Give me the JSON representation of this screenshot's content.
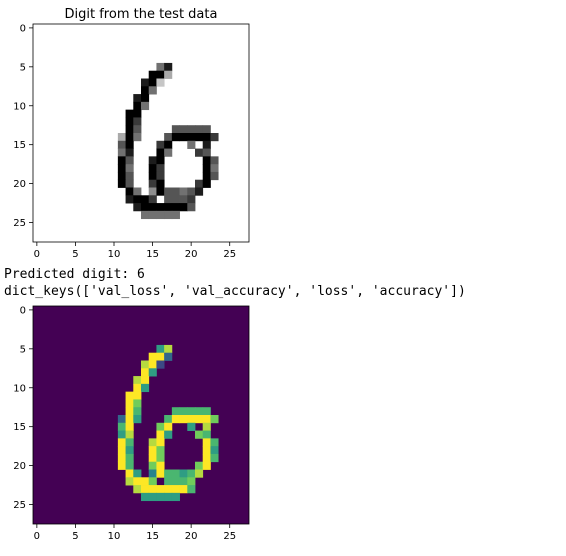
{
  "plots": [
    {
      "title": "Digit from the test data",
      "colormap": "gray_r",
      "xticks": [
        "0",
        "5",
        "10",
        "15",
        "20",
        "25"
      ],
      "yticks": [
        "0",
        "5",
        "10",
        "15",
        "20",
        "25"
      ]
    },
    {
      "title": "",
      "colormap": "viridis",
      "xticks": [
        "0",
        "5",
        "10",
        "15",
        "20",
        "25"
      ],
      "yticks": [
        "0",
        "5",
        "10",
        "15",
        "20",
        "25"
      ]
    }
  ],
  "output_lines": {
    "predicted": "Predicted digit: 6",
    "keys": "dict_keys(['val_loss', 'val_accuracy', 'loss', 'accuracy'])"
  },
  "chart_data": [
    {
      "type": "heatmap",
      "title": "Digit from the test data",
      "colormap": "gray_r",
      "rows": 28,
      "cols": 28,
      "xlim": [
        -0.5,
        27.5
      ],
      "ylim": [
        27.5,
        -0.5
      ],
      "xticks": [
        0,
        5,
        10,
        15,
        20,
        25
      ],
      "yticks": [
        0,
        5,
        10,
        15,
        20,
        25
      ]
    },
    {
      "type": "heatmap",
      "title": "",
      "colormap": "viridis",
      "rows": 28,
      "cols": 28,
      "xlim": [
        -0.5,
        27.5
      ],
      "ylim": [
        27.5,
        -0.5
      ],
      "xticks": [
        0,
        5,
        10,
        15,
        20,
        25
      ],
      "yticks": [
        0,
        5,
        10,
        15,
        20,
        25
      ]
    }
  ],
  "image_rows": [
    "............................",
    "............................",
    "............................",
    "............................",
    "............................",
    "................58..........",
    "...............993..........",
    "..............892...........",
    "..............95............",
    ".............89.............",
    ".............95.............",
    "............99..............",
    "............97..............",
    "............96....66666.....",
    "...........395...6999997....",
    "...........69...79..5.8.....",
    "...........58...95...76.....",
    "...........96..89.....96....",
    "...........95..97.....95....",
    "...........96..97.....96....",
    "...........96..79....79.....",
    "............95.4966568......",
    "............8997.6667.......",
    ".............89999996.......",
    "..............55555.........",
    "............................",
    "............................",
    "............................"
  ]
}
